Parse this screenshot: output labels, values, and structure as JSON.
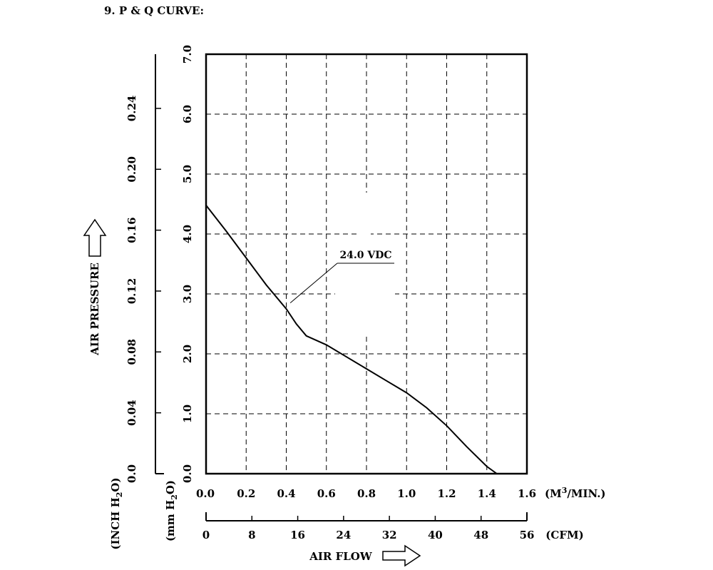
{
  "heading": "9. P & Q CURVE:",
  "chart_data": {
    "type": "line",
    "title": "",
    "x": {
      "label": "AIR FLOW",
      "lim": [
        0,
        1.6
      ],
      "ticks": [
        "0.0",
        "0.2",
        "0.4",
        "0.6",
        "0.8",
        "1.0",
        "1.2",
        "1.4",
        "1.6"
      ],
      "unit": "(M3/MIN.)"
    },
    "x_secondary": {
      "lim": [
        0,
        56
      ],
      "ticks": [
        "0",
        "8",
        "16",
        "24",
        "32",
        "40",
        "48",
        "56"
      ],
      "unit": "(CFM)"
    },
    "y": {
      "label": "AIR PRESSURE",
      "lim": [
        0,
        7.0
      ],
      "ticks": [
        "0.0",
        "1.0",
        "2.0",
        "3.0",
        "4.0",
        "5.0",
        "6.0",
        "7.0"
      ],
      "unit": "(mm H2O)"
    },
    "y_secondary": {
      "lim": [
        0,
        0.2756
      ],
      "ticks": [
        "0.0",
        "0.04",
        "0.08",
        "0.12",
        "0.16",
        "0.20",
        "0.24"
      ],
      "unit": "(INCH H2O)"
    },
    "grid": true,
    "series": [
      {
        "name": "24.0 VDC",
        "x": [
          0.0,
          0.1,
          0.2,
          0.3,
          0.4,
          0.45,
          0.5,
          0.6,
          0.7,
          0.8,
          0.9,
          1.0,
          1.1,
          1.2,
          1.3,
          1.4,
          1.45
        ],
        "y": [
          4.48,
          4.05,
          3.6,
          3.15,
          2.75,
          2.5,
          2.3,
          2.15,
          1.95,
          1.75,
          1.55,
          1.35,
          1.1,
          0.8,
          0.45,
          0.12,
          0.0
        ]
      }
    ],
    "annotations": [
      {
        "text": "24.0 VDC",
        "series": "24.0 VDC",
        "x": 0.42,
        "y": 2.85
      }
    ]
  }
}
